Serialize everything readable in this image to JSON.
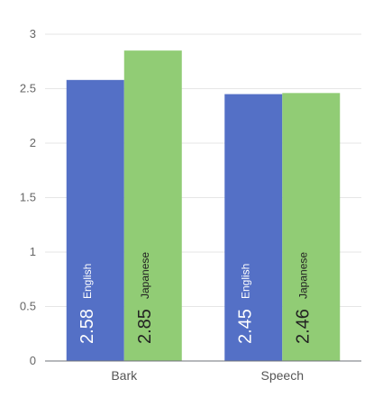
{
  "chart_data": {
    "type": "bar",
    "categories": [
      "Bark",
      "Speech"
    ],
    "series": [
      {
        "name": "English",
        "values": [
          2.58,
          2.45
        ],
        "color": "#5470c6",
        "value_label_color": "#ffffff",
        "series_label_color": "#ffffff"
      },
      {
        "name": "Japanese",
        "values": [
          2.85,
          2.46
        ],
        "color": "#91cc75",
        "value_label_color": "#222222",
        "series_label_color": "#222222"
      }
    ],
    "ylim": [
      0,
      3
    ],
    "yticks": [
      "0",
      "0.5",
      "1",
      "1.5",
      "2",
      "2.5",
      "3"
    ],
    "ytick_values": [
      0,
      0.5,
      1,
      1.5,
      2,
      2.5,
      3
    ],
    "grid": true,
    "legend": "none",
    "title": "",
    "xlabel": "",
    "ylabel": ""
  }
}
